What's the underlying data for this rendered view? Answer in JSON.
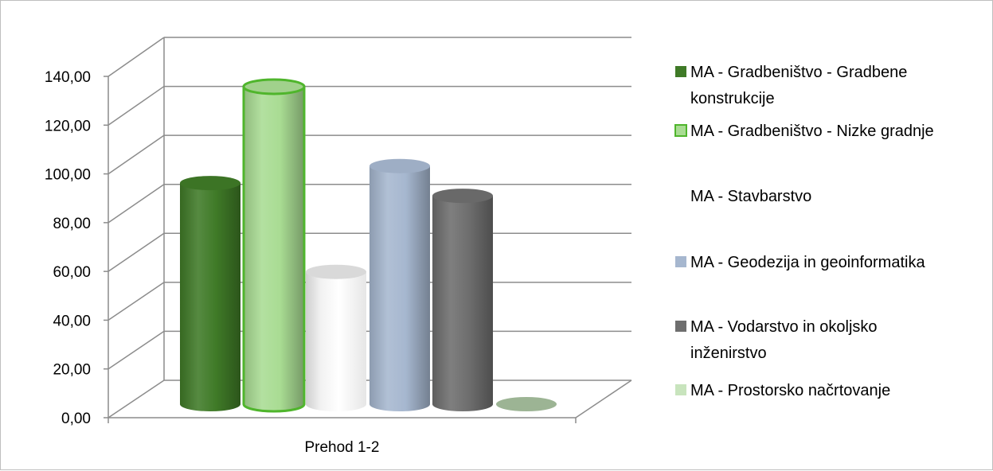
{
  "chart_data": {
    "type": "bar",
    "style": "3d-cylinder",
    "categories": [
      "Prehod 1-2"
    ],
    "series": [
      {
        "name": "MA - Gradbeništvo - Gradbene konstrukcije",
        "values": [
          92.86
        ],
        "color": "#3f7a27"
      },
      {
        "name": "MA - Gradbeništvo - Nizke gradnje",
        "values": [
          133.33
        ],
        "color": "#a9dc93"
      },
      {
        "name": "MA - Stavbarstvo",
        "values": [
          55.56
        ],
        "color": "#ffffff"
      },
      {
        "name": "MA - Geodezija in geoinformatika",
        "values": [
          100.0
        ],
        "color": "#a6b7cf"
      },
      {
        "name": "MA - Vodarstvo in okoljsko inženirstvo",
        "values": [
          87.5
        ],
        "color": "#6e6e6e"
      },
      {
        "name": "MA - Prostorsko načrtovanje",
        "values": [
          0.0
        ],
        "color": "#c8e4bd"
      }
    ],
    "y_ticks": [
      "0,00",
      "20,00",
      "40,00",
      "60,00",
      "80,00",
      "100,00",
      "120,00",
      "140,00"
    ],
    "ylim": [
      0,
      140
    ],
    "grid": true,
    "legend_position": "right",
    "title": "",
    "xlabel": "",
    "ylabel": ""
  }
}
